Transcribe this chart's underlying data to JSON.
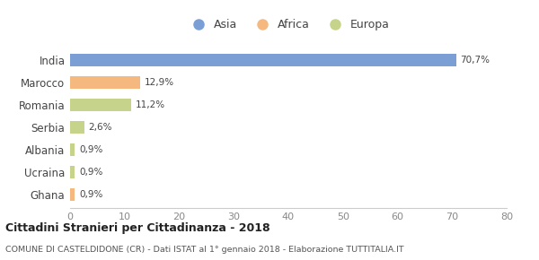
{
  "categories": [
    "India",
    "Marocco",
    "Romania",
    "Serbia",
    "Albania",
    "Ucraina",
    "Ghana"
  ],
  "values": [
    70.7,
    12.9,
    11.2,
    2.6,
    0.9,
    0.9,
    0.9
  ],
  "labels": [
    "70,7%",
    "12,9%",
    "11,2%",
    "2,6%",
    "0,9%",
    "0,9%",
    "0,9%"
  ],
  "colors": [
    "#7b9fd4",
    "#f5b97f",
    "#c5d48a",
    "#c5d48a",
    "#c5d48a",
    "#c5d48a",
    "#f5b97f"
  ],
  "legend": [
    {
      "label": "Asia",
      "color": "#7b9fd4"
    },
    {
      "label": "Africa",
      "color": "#f5b97f"
    },
    {
      "label": "Europa",
      "color": "#c5d48a"
    }
  ],
  "xlim": [
    0,
    80
  ],
  "xticks": [
    0,
    10,
    20,
    30,
    40,
    50,
    60,
    70,
    80
  ],
  "title_bold": "Cittadini Stranieri per Cittadinanza - 2018",
  "subtitle": "COMUNE DI CASTELDIDONE (CR) - Dati ISTAT al 1° gennaio 2018 - Elaborazione TUTTITALIA.IT",
  "background_color": "#ffffff",
  "bar_height": 0.55
}
